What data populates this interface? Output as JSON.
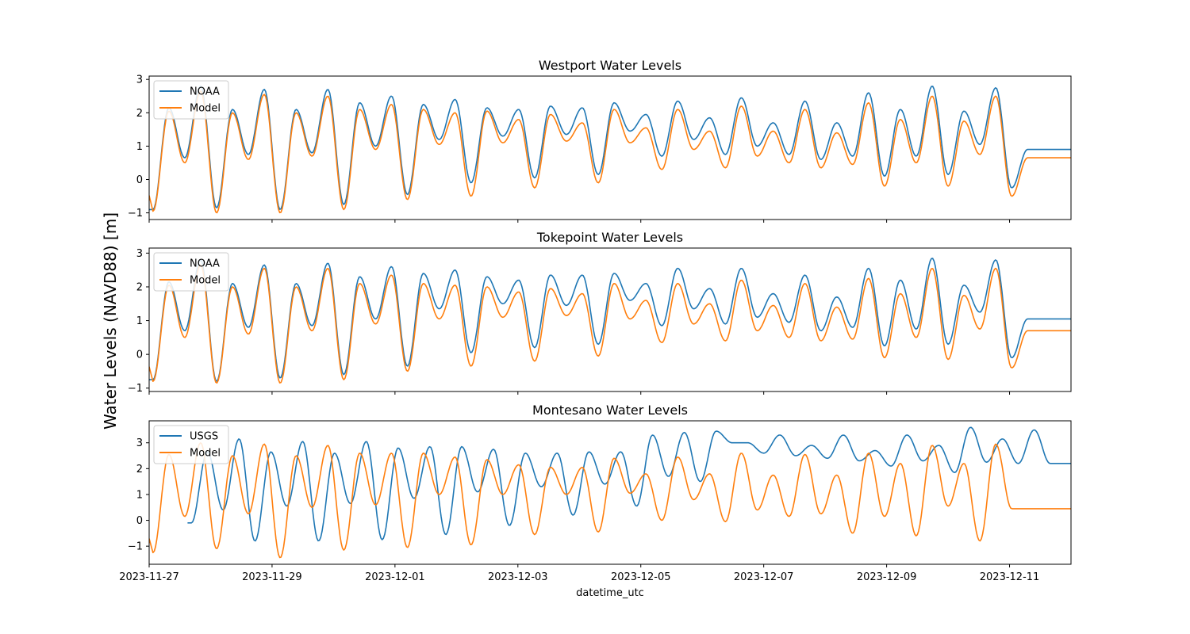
{
  "figure": {
    "ylabel": "Water Levels (NAVD88) [m]",
    "xlabel": "datetime_utc",
    "x_ticks": [
      "2023-11-27",
      "2023-11-29",
      "2023-12-01",
      "2023-12-03",
      "2023-12-05",
      "2023-12-07",
      "2023-12-09",
      "2023-12-11"
    ],
    "xlim": [
      "2023-11-27T00:00",
      "2023-12-12T00:00"
    ]
  },
  "chart_data": [
    {
      "type": "line",
      "title": "Westport Water Levels",
      "ylim": [
        -1.2,
        3.1
      ],
      "y_ticks": [
        -1,
        0,
        1,
        2,
        3
      ],
      "legend": "top-left",
      "series": [
        {
          "name": "NOAA",
          "color": "#1f77b4",
          "start": "2023-11-27T00:00",
          "hw1": [
            2.15,
            2.8,
            2.1,
            2.7,
            2.1,
            2.7,
            2.3,
            2.5,
            2.25,
            2.4,
            2.15,
            2.1,
            2.2,
            2.15,
            2.3,
            1.95,
            2.35,
            1.85,
            2.45,
            1.7,
            2.35,
            1.7,
            2.6,
            2.1,
            2.8,
            2.05,
            2.75
          ],
          "lw": [
            -0.9,
            0.65,
            -0.85,
            0.75,
            -0.9,
            0.8,
            -0.75,
            1.0,
            -0.45,
            1.2,
            -0.1,
            1.3,
            0.05,
            1.35,
            0.15,
            1.45,
            0.7,
            1.2,
            0.75,
            1.0,
            0.75,
            0.6,
            0.7,
            0.1,
            0.7,
            0.15,
            1.05,
            -0.25,
            0.9
          ]
        },
        {
          "name": "Model",
          "color": "#ff7f0e",
          "start": "2023-11-27T00:00",
          "hw1": [
            2.05,
            2.65,
            2.0,
            2.55,
            2.0,
            2.5,
            2.1,
            2.25,
            2.1,
            2.0,
            2.05,
            1.8,
            1.95,
            1.7,
            2.1,
            1.55,
            2.1,
            1.45,
            2.2,
            1.45,
            2.1,
            1.4,
            2.3,
            1.8,
            2.5,
            1.75,
            2.5
          ],
          "lw": [
            -0.95,
            0.5,
            -1.0,
            0.6,
            -1.0,
            0.7,
            -0.9,
            0.9,
            -0.6,
            1.05,
            -0.5,
            1.1,
            -0.25,
            1.15,
            -0.1,
            1.1,
            0.3,
            0.9,
            0.35,
            0.7,
            0.5,
            0.35,
            0.45,
            -0.2,
            0.5,
            -0.2,
            0.75,
            -0.5,
            0.65
          ]
        }
      ]
    },
    {
      "type": "line",
      "title": "Tokepoint Water Levels",
      "ylim": [
        -1.1,
        3.15
      ],
      "y_ticks": [
        -1,
        0,
        1,
        2,
        3
      ],
      "legend": "top-left",
      "series": [
        {
          "name": "NOAA",
          "color": "#1f77b4",
          "start": "2023-11-27T00:00",
          "hw1": [
            2.15,
            2.8,
            2.1,
            2.65,
            2.1,
            2.7,
            2.3,
            2.6,
            2.4,
            2.5,
            2.3,
            2.2,
            2.35,
            2.35,
            2.4,
            2.1,
            2.55,
            1.95,
            2.55,
            1.8,
            2.35,
            1.7,
            2.55,
            2.2,
            2.85,
            2.05,
            2.8
          ],
          "lw": [
            -0.75,
            0.7,
            -0.8,
            0.8,
            -0.7,
            0.85,
            -0.6,
            1.05,
            -0.35,
            1.35,
            0.05,
            1.5,
            0.2,
            1.45,
            0.3,
            1.6,
            0.85,
            1.35,
            0.9,
            1.1,
            0.95,
            0.7,
            0.8,
            0.25,
            0.75,
            0.3,
            1.25,
            -0.1,
            1.05
          ]
        },
        {
          "name": "Model",
          "color": "#ff7f0e",
          "start": "2023-11-27T00:00",
          "hw1": [
            2.05,
            2.65,
            2.0,
            2.55,
            2.0,
            2.55,
            2.1,
            2.35,
            2.1,
            2.05,
            2.0,
            1.85,
            1.95,
            1.8,
            2.1,
            1.6,
            2.1,
            1.5,
            2.2,
            1.45,
            2.1,
            1.4,
            2.25,
            1.8,
            2.55,
            1.75,
            2.55
          ],
          "lw": [
            -0.8,
            0.5,
            -0.85,
            0.6,
            -0.85,
            0.7,
            -0.75,
            0.9,
            -0.5,
            1.05,
            -0.35,
            1.1,
            -0.2,
            1.15,
            -0.05,
            1.05,
            0.35,
            0.9,
            0.4,
            0.7,
            0.5,
            0.4,
            0.45,
            -0.1,
            0.5,
            -0.15,
            0.75,
            -0.4,
            0.7
          ]
        }
      ]
    },
    {
      "type": "line",
      "title": "Montesano Water Levels",
      "ylim": [
        -1.7,
        3.85
      ],
      "y_ticks": [
        -1,
        0,
        1,
        2,
        3
      ],
      "legend": "top-left",
      "series": [
        {
          "name": "USGS",
          "color": "#1f77b4",
          "start": "2023-11-27T15:00",
          "hw1": [
            2.65,
            3.15,
            2.65,
            3.05,
            2.6,
            3.05,
            2.8,
            2.85,
            2.85,
            2.75,
            2.6,
            2.6,
            2.65,
            2.65,
            3.3,
            3.4,
            3.45,
            3.0,
            3.3,
            2.9,
            3.3,
            2.7,
            3.3,
            2.9,
            3.6,
            3.15,
            3.5
          ],
          "lw": [
            -0.1,
            0.4,
            -0.8,
            0.55,
            -0.8,
            0.65,
            -0.75,
            0.85,
            -0.55,
            1.1,
            -0.2,
            1.3,
            0.2,
            1.4,
            0.55,
            1.7,
            1.5,
            3.0,
            2.6,
            2.5,
            2.4,
            2.3,
            2.1,
            2.3,
            1.85,
            2.25,
            2.2,
            2.2
          ]
        },
        {
          "name": "Model",
          "color": "#ff7f0e",
          "start": "2023-11-27T00:00",
          "hw1": [
            2.55,
            3.0,
            2.5,
            2.95,
            2.5,
            2.9,
            2.6,
            2.6,
            2.6,
            2.45,
            2.35,
            2.15,
            2.05,
            2.05,
            2.4,
            1.8,
            2.45,
            1.8,
            2.6,
            1.75,
            2.55,
            1.75,
            2.6,
            2.2,
            2.9,
            2.2,
            2.95
          ],
          "lw": [
            -1.25,
            0.15,
            -1.1,
            0.25,
            -1.45,
            0.5,
            -1.15,
            0.6,
            -1.05,
            1.0,
            -0.95,
            1.0,
            -0.55,
            1.0,
            -0.45,
            1.05,
            0.0,
            0.8,
            -0.05,
            0.4,
            0.15,
            0.25,
            -0.5,
            0.15,
            -0.6,
            0.55,
            -0.8,
            0.45
          ]
        }
      ]
    }
  ]
}
